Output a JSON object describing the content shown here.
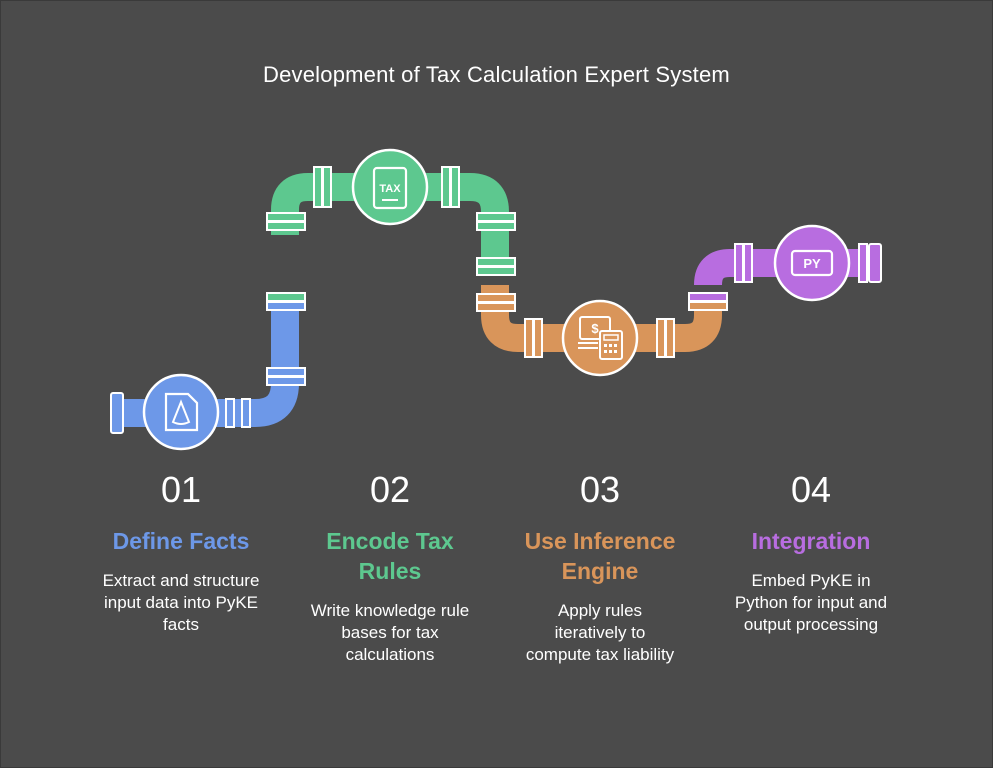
{
  "title": "Development of Tax Calculation Expert System",
  "colors": {
    "blue": "#6d98e8",
    "green": "#5dc88f",
    "orange": "#d9955a",
    "purple": "#b86de0",
    "background": "#4b4b4b"
  },
  "icons": {
    "step1": "document-shape-icon",
    "step2": "tax-document-icon",
    "step3": "money-calculator-icon",
    "step4": "python-file-icon"
  },
  "icon_text": {
    "tax": "TAX",
    "py": "PY"
  },
  "steps": [
    {
      "number": "01",
      "heading": "Define Facts",
      "description": [
        "Extract and structure",
        "input data into PyKE",
        "facts"
      ]
    },
    {
      "number": "02",
      "heading": [
        "Encode Tax",
        "Rules"
      ],
      "description": [
        "Write knowledge rule",
        "bases for tax",
        "calculations"
      ]
    },
    {
      "number": "03",
      "heading": [
        "Use Inference",
        "Engine"
      ],
      "description": [
        "Apply rules",
        "iteratively to",
        "compute tax liability"
      ]
    },
    {
      "number": "04",
      "heading": "Integration",
      "description": [
        "Embed PyKE in",
        "Python for input and",
        "output processing"
      ]
    }
  ]
}
